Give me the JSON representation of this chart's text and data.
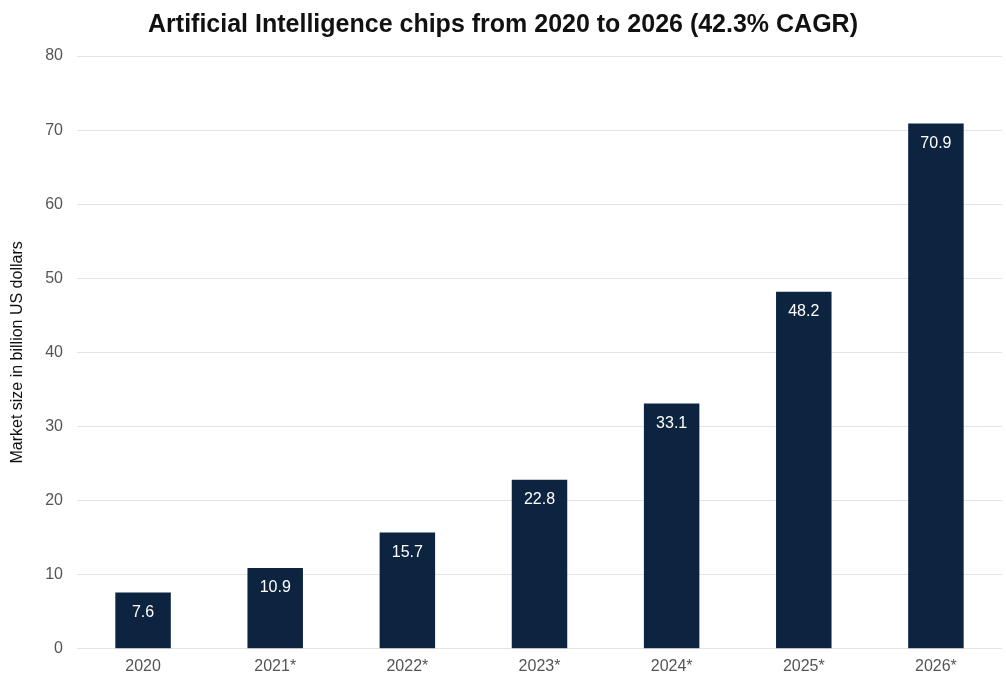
{
  "chart_data": {
    "type": "bar",
    "title": "Artificial Intelligence chips from 2020 to 2026 (42.3% CAGR)",
    "ylabel": "Market size in billion US dollars",
    "categories": [
      "2020",
      "2021*",
      "2022*",
      "2023*",
      "2024*",
      "2025*",
      "2026*"
    ],
    "values": [
      7.6,
      10.9,
      15.7,
      22.8,
      33.1,
      48.2,
      70.9
    ],
    "color": "#0d2440",
    "ylim": [
      0,
      80
    ],
    "yticks": [
      0,
      10,
      20,
      30,
      40,
      50,
      60,
      70,
      80
    ],
    "grid": "y",
    "data_labels": true,
    "legend": false
  }
}
